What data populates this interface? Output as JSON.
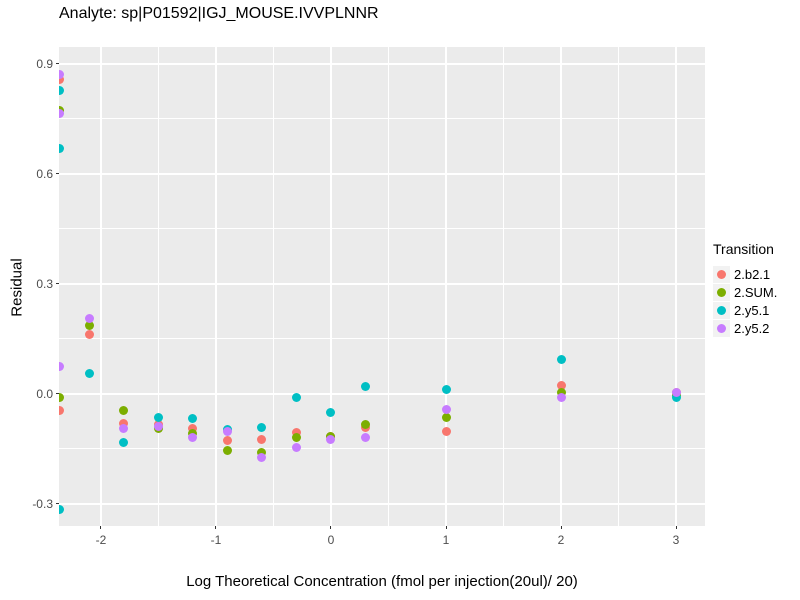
{
  "figure": {
    "background": "#FFFFFF",
    "panel_background": "#EBEBEB",
    "gridline_color": "#FFFFFF",
    "tick_mark_color": "#333333",
    "tick_label_color": "#4D4D4D",
    "text_color": "#000000",
    "legend_key_background": "#F2F2F2"
  },
  "chart_data": {
    "type": "scatter",
    "title": "Analyte: sp|P01592|IGJ_MOUSE.IVVPLNNR",
    "xlabel": "Log Theoretical Concentration (fmol per injection(20ul)/ 20)",
    "ylabel": "Residual",
    "legend_title": "Transition",
    "legend_position": "right",
    "grid": true,
    "xlim": [
      -2.365,
      3.252
    ],
    "ylim": [
      -0.36,
      0.946
    ],
    "x_ticks": [
      -2,
      -1,
      0,
      1,
      2,
      3
    ],
    "x_tick_labels": [
      "-2",
      "-1",
      "0",
      "1",
      "2",
      "3"
    ],
    "y_ticks": [
      0.9,
      0.6,
      0.3,
      0.0,
      -0.3
    ],
    "y_tick_labels": [
      "0.9",
      "0.6",
      "0.3",
      "0.0",
      "-0.3"
    ],
    "x_minor_ticks": [
      -1.5,
      -0.5,
      0.5,
      1.5,
      2.5
    ],
    "y_minor_ticks": [
      0.75,
      0.45,
      0.15,
      -0.15
    ],
    "series": [
      {
        "name": "2.b2.1",
        "color": "#F8766D",
        "points": [
          [
            -2.36,
            0.858
          ],
          [
            -2.36,
            -0.046
          ],
          [
            -2.1,
            0.161
          ],
          [
            -1.8,
            -0.08
          ],
          [
            -1.5,
            -0.083
          ],
          [
            -1.2,
            -0.093
          ],
          [
            -0.9,
            -0.128
          ],
          [
            -0.6,
            -0.124
          ],
          [
            -0.3,
            -0.104
          ],
          [
            0.0,
            -0.117
          ],
          [
            0.3,
            -0.091
          ],
          [
            1.0,
            -0.101
          ],
          [
            2.0,
            0.022
          ],
          [
            3.0,
            0.005
          ]
        ]
      },
      {
        "name": "2.SUM.",
        "color": "#7CAE00",
        "points": [
          [
            -2.36,
            0.772
          ],
          [
            -2.36,
            -0.009
          ],
          [
            -2.1,
            0.187
          ],
          [
            -1.8,
            -0.044
          ],
          [
            -1.5,
            -0.094
          ],
          [
            -1.2,
            -0.108
          ],
          [
            -0.9,
            -0.153
          ],
          [
            -0.6,
            -0.16
          ],
          [
            -0.3,
            -0.12
          ],
          [
            0.0,
            -0.116
          ],
          [
            0.3,
            -0.082
          ],
          [
            1.0,
            -0.064
          ],
          [
            2.0,
            0.005
          ],
          [
            3.0,
            -0.003
          ]
        ]
      },
      {
        "name": "2.y5.1",
        "color": "#00BFC4",
        "points": [
          [
            -2.36,
            0.828
          ],
          [
            -2.36,
            0.669
          ],
          [
            -2.36,
            -0.315
          ],
          [
            -2.1,
            0.057
          ],
          [
            -1.8,
            -0.131
          ],
          [
            -1.5,
            -0.065
          ],
          [
            -1.2,
            -0.068
          ],
          [
            -0.9,
            -0.098
          ],
          [
            -0.6,
            -0.091
          ],
          [
            -0.3,
            -0.011
          ],
          [
            0.0,
            -0.05
          ],
          [
            0.3,
            0.019
          ],
          [
            1.0,
            0.012
          ],
          [
            2.0,
            0.093
          ],
          [
            3.0,
            -0.011
          ]
        ]
      },
      {
        "name": "2.y5.2",
        "color": "#C77CFF",
        "points": [
          [
            -2.36,
            0.872
          ],
          [
            -2.36,
            0.765
          ],
          [
            -2.36,
            0.076
          ],
          [
            -2.1,
            0.207
          ],
          [
            -1.8,
            -0.094
          ],
          [
            -1.5,
            -0.09
          ],
          [
            -1.2,
            -0.119
          ],
          [
            -0.9,
            -0.102
          ],
          [
            -0.6,
            -0.173
          ],
          [
            -0.3,
            -0.146
          ],
          [
            0.0,
            -0.124
          ],
          [
            0.3,
            -0.12
          ],
          [
            1.0,
            -0.041
          ],
          [
            2.0,
            -0.01
          ],
          [
            3.0,
            0.004
          ]
        ]
      }
    ]
  }
}
